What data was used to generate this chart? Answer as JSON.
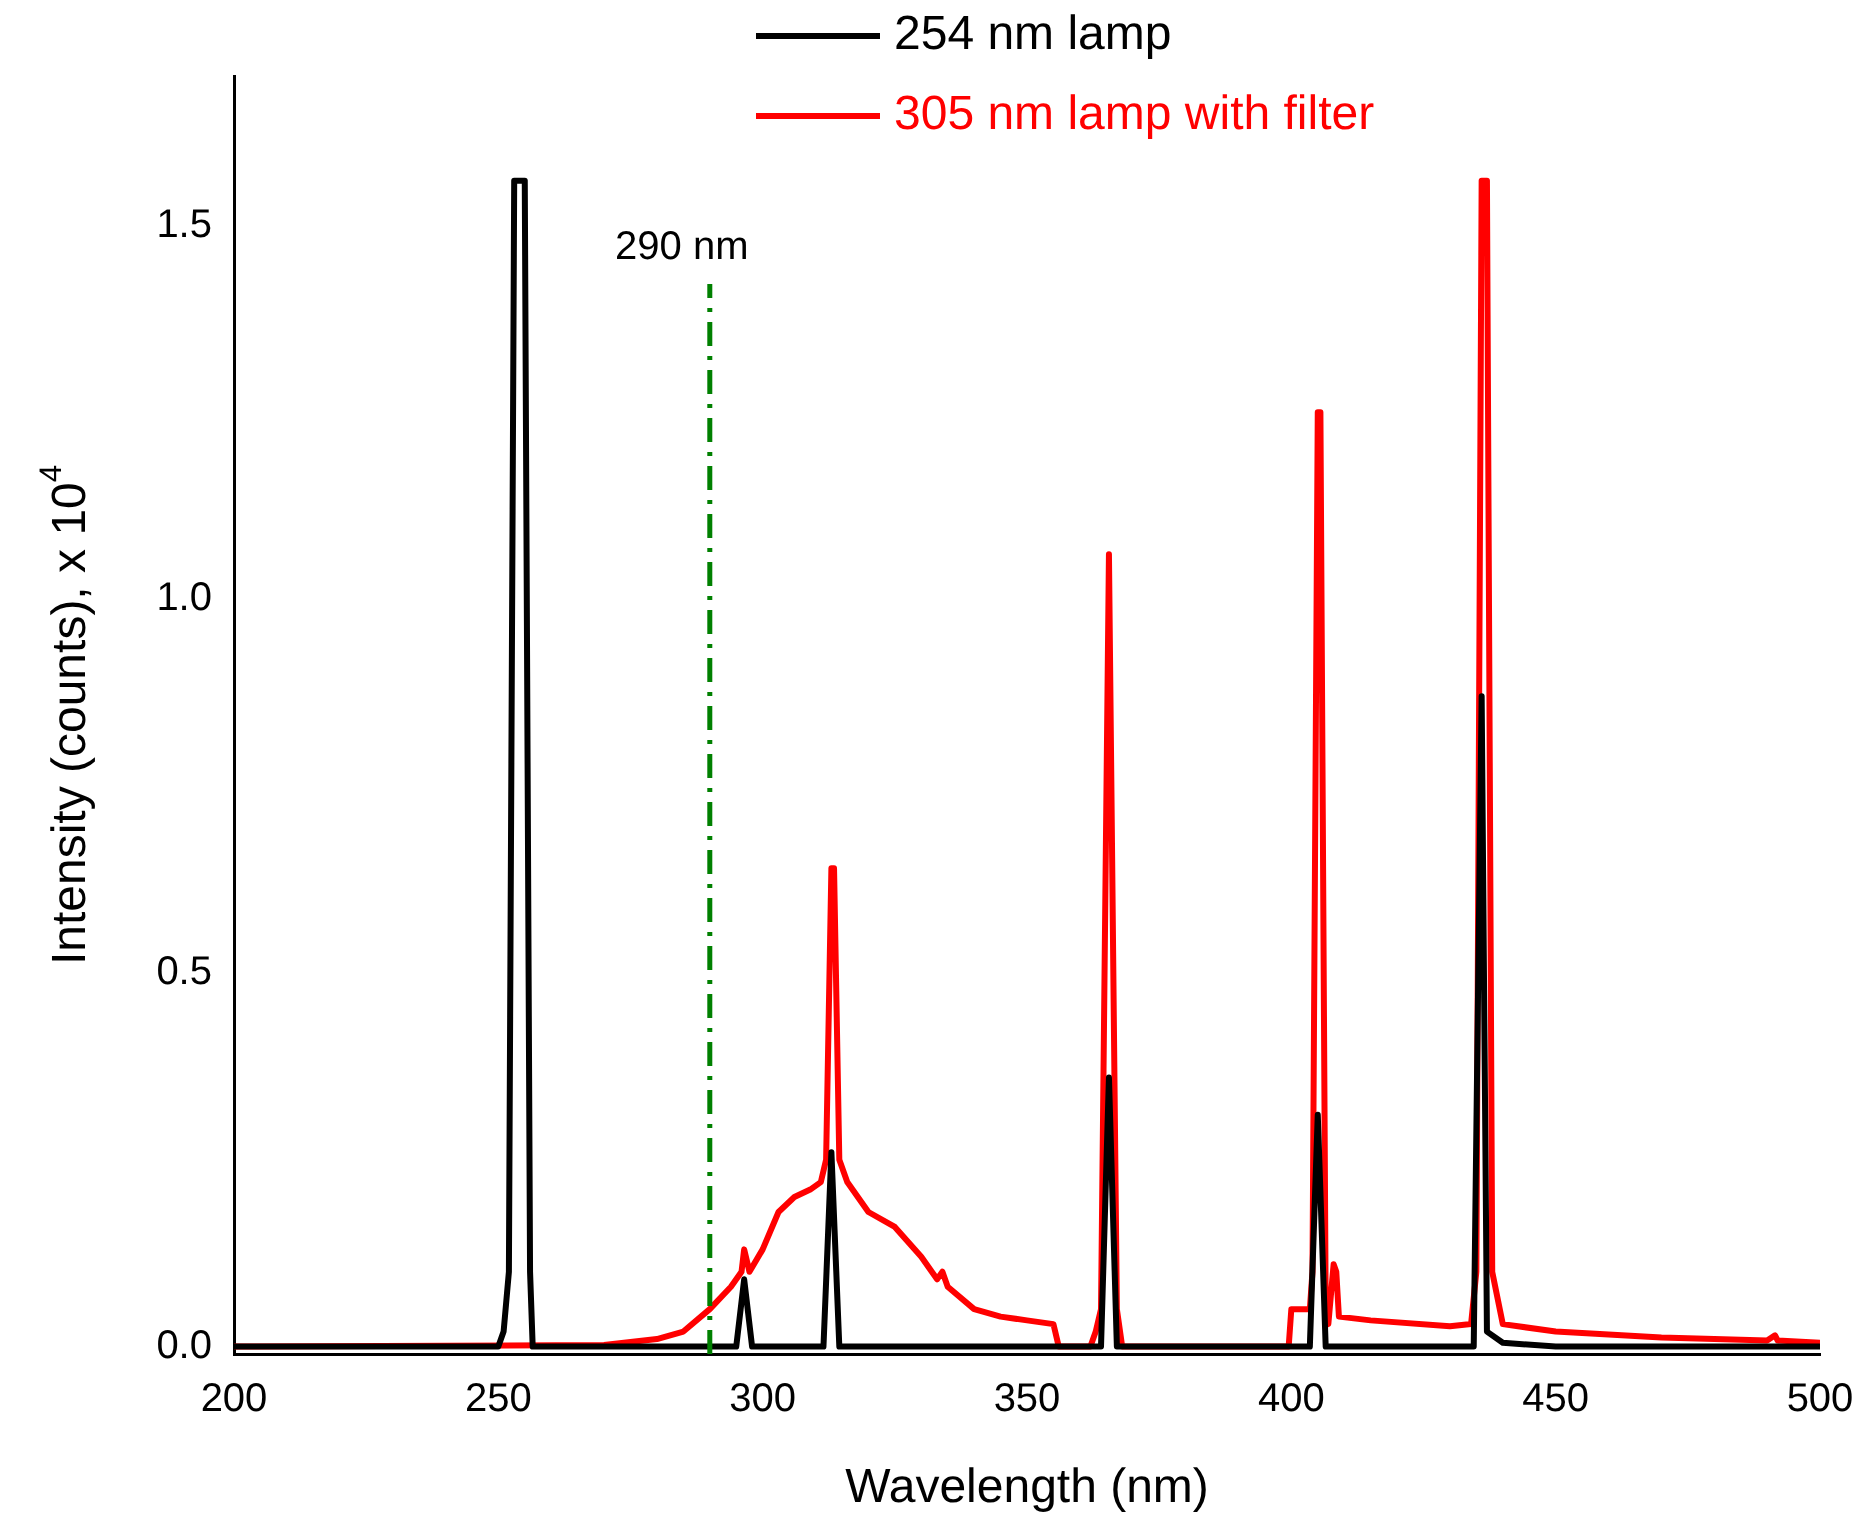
{
  "chart_data": {
    "type": "line",
    "xlabel": "Wavelength (nm)",
    "ylabel": "Intensity (counts), x 10$^{4}$",
    "xlim": [
      200,
      500
    ],
    "xticks": [
      200,
      250,
      300,
      350,
      400,
      450,
      500
    ],
    "ylim": [
      -0.01,
      1.7
    ],
    "yticks": [
      {
        "value": 0,
        "label": "0.0"
      },
      {
        "value": 0.5,
        "label": "0.5"
      },
      {
        "value": 1,
        "label": "1.0"
      },
      {
        "value": 1.5,
        "label": "1.5"
      }
    ],
    "grid": false,
    "legend": "top",
    "marker": "none",
    "line_style": "solid",
    "ref_lines": [
      {
        "axis": "x",
        "value": 290,
        "label": "290 nm",
        "color": "#008000",
        "line_style": "dashdot"
      }
    ],
    "series": [
      {
        "name": "254 nm lamp",
        "color": "#000000",
        "x": [
          200,
          250,
          251,
          252,
          253,
          255,
          256,
          256.5,
          295,
          296.5,
          298,
          311.5,
          313,
          314.5,
          364,
          365.5,
          367,
          403.5,
          405,
          406.5,
          434.5,
          436,
          437,
          440,
          450,
          500
        ],
        "values": [
          0,
          0,
          0.02,
          0.1,
          1.56,
          1.56,
          0.1,
          0,
          0,
          0.09,
          0,
          0,
          0.26,
          0,
          0,
          0.36,
          0,
          0,
          0.31,
          0,
          0,
          0.87,
          0.02,
          0.005,
          0,
          0
        ]
      },
      {
        "name": "305 nm lamp with filter",
        "color": "#ff0000",
        "x": [
          200,
          270,
          280,
          285,
          290,
          294,
          296,
          296.5,
          297.5,
          300,
          303,
          306,
          309,
          311,
          312,
          313,
          313.5,
          314.5,
          316,
          320,
          325,
          330,
          333,
          334,
          335,
          340,
          345,
          350,
          355,
          356,
          362,
          363,
          364,
          365.5,
          367,
          368,
          399.5,
          400,
          403.5,
          404,
          405,
          405.5,
          406.5,
          407,
          408,
          408.5,
          409,
          415,
          430,
          434,
          435,
          436,
          437,
          438,
          440,
          450,
          470,
          490,
          491.5,
          492,
          500
        ],
        "values": [
          0,
          0.002,
          0.01,
          0.02,
          0.05,
          0.08,
          0.1,
          0.13,
          0.1,
          0.13,
          0.18,
          0.2,
          0.21,
          0.22,
          0.25,
          0.64,
          0.64,
          0.25,
          0.22,
          0.18,
          0.16,
          0.12,
          0.09,
          0.1,
          0.08,
          0.05,
          0.04,
          0.035,
          0.03,
          0,
          0,
          0.02,
          0.05,
          1.06,
          0.05,
          0,
          0,
          0.05,
          0.05,
          0.1,
          1.25,
          1.25,
          0.05,
          0.03,
          0.11,
          0.1,
          0.04,
          0.035,
          0.027,
          0.03,
          0.1,
          1.56,
          1.56,
          0.1,
          0.03,
          0.02,
          0.012,
          0.008,
          0.015,
          0.008,
          0.005
        ]
      }
    ]
  }
}
